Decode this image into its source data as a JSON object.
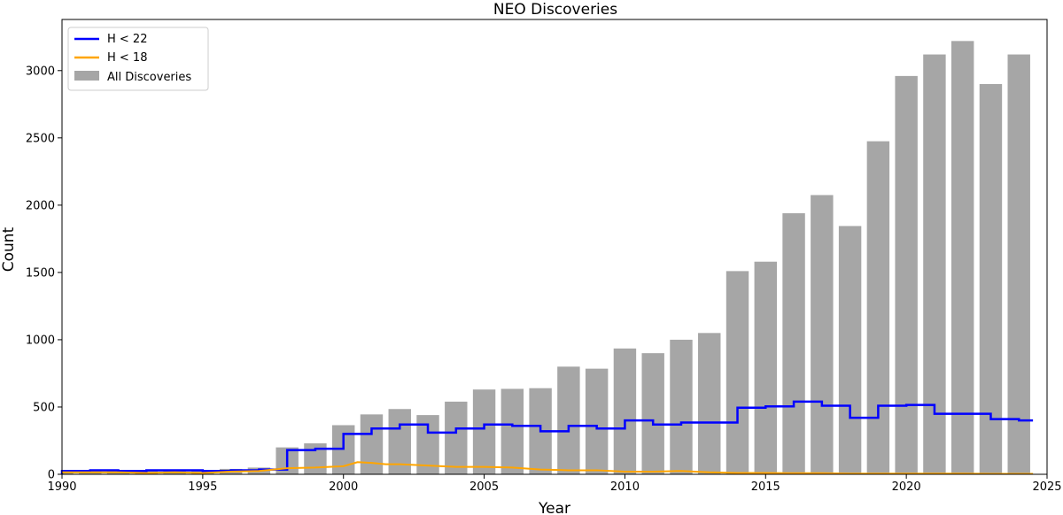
{
  "chart_data": {
    "type": "bar",
    "title": "NEO Discoveries",
    "xlabel": "Year",
    "ylabel": "Count",
    "xlim": [
      1990,
      2025
    ],
    "ylim": [
      0,
      3380
    ],
    "x_ticks": [
      1990,
      1995,
      2000,
      2005,
      2010,
      2015,
      2020,
      2025
    ],
    "y_ticks": [
      0,
      500,
      1000,
      1500,
      2000,
      2500,
      3000
    ],
    "grid": false,
    "legend_position": "top-left",
    "bars": {
      "name": "All Discoveries",
      "color": "#a6a6a6",
      "x": [
        1990,
        1991,
        1992,
        1993,
        1994,
        1995,
        1996,
        1997,
        1998,
        1999,
        2000,
        2001,
        2002,
        2003,
        2004,
        2005,
        2006,
        2007,
        2008,
        2009,
        2010,
        2011,
        2012,
        2013,
        2014,
        2015,
        2016,
        2017,
        2018,
        2019,
        2020,
        2021,
        2022,
        2023,
        2024
      ],
      "values": [
        30,
        30,
        30,
        30,
        30,
        25,
        40,
        50,
        200,
        230,
        365,
        445,
        485,
        440,
        540,
        630,
        635,
        640,
        800,
        785,
        935,
        900,
        1000,
        1050,
        1510,
        1580,
        1940,
        2075,
        1845,
        2475,
        2960,
        3120,
        3220,
        2900,
        3120
      ]
    },
    "series": [
      {
        "name": "H < 22",
        "color": "#0000ff",
        "style": "step-post",
        "x": [
          1990,
          1991,
          1992,
          1993,
          1994,
          1995,
          1996,
          1997,
          1998,
          1999,
          2000,
          2001,
          2002,
          2003,
          2004,
          2005,
          2006,
          2007,
          2008,
          2009,
          2010,
          2011,
          2012,
          2013,
          2014,
          2015,
          2016,
          2017,
          2018,
          2019,
          2020,
          2021,
          2022,
          2023,
          2024
        ],
        "values": [
          25,
          30,
          25,
          30,
          30,
          25,
          30,
          35,
          180,
          190,
          300,
          340,
          370,
          310,
          340,
          370,
          360,
          320,
          360,
          340,
          400,
          370,
          385,
          385,
          495,
          505,
          540,
          510,
          420,
          510,
          515,
          450,
          450,
          410,
          400
        ],
        "end_x": 2024.5
      },
      {
        "name": "H < 18",
        "color": "#ffa500",
        "style": "line",
        "x": [
          1990,
          1991,
          1992,
          1993,
          1994,
          1995,
          1996,
          1997,
          1998,
          1999,
          2000,
          2000.5,
          2001,
          2001.5,
          2002,
          2003,
          2004,
          2005,
          2006,
          2007,
          2008,
          2009,
          2010,
          2011,
          2012,
          2013,
          2014,
          2015,
          2016,
          2017,
          2018,
          2019,
          2020,
          2021,
          2022,
          2023,
          2024.5
        ],
        "values": [
          15,
          15,
          15,
          10,
          15,
          10,
          20,
          25,
          45,
          50,
          60,
          90,
          85,
          75,
          75,
          65,
          55,
          55,
          50,
          35,
          30,
          30,
          20,
          20,
          25,
          15,
          10,
          10,
          8,
          8,
          5,
          5,
          5,
          5,
          5,
          3,
          3
        ]
      }
    ],
    "legend": [
      "H < 22",
      "H < 18",
      "All Discoveries"
    ]
  }
}
